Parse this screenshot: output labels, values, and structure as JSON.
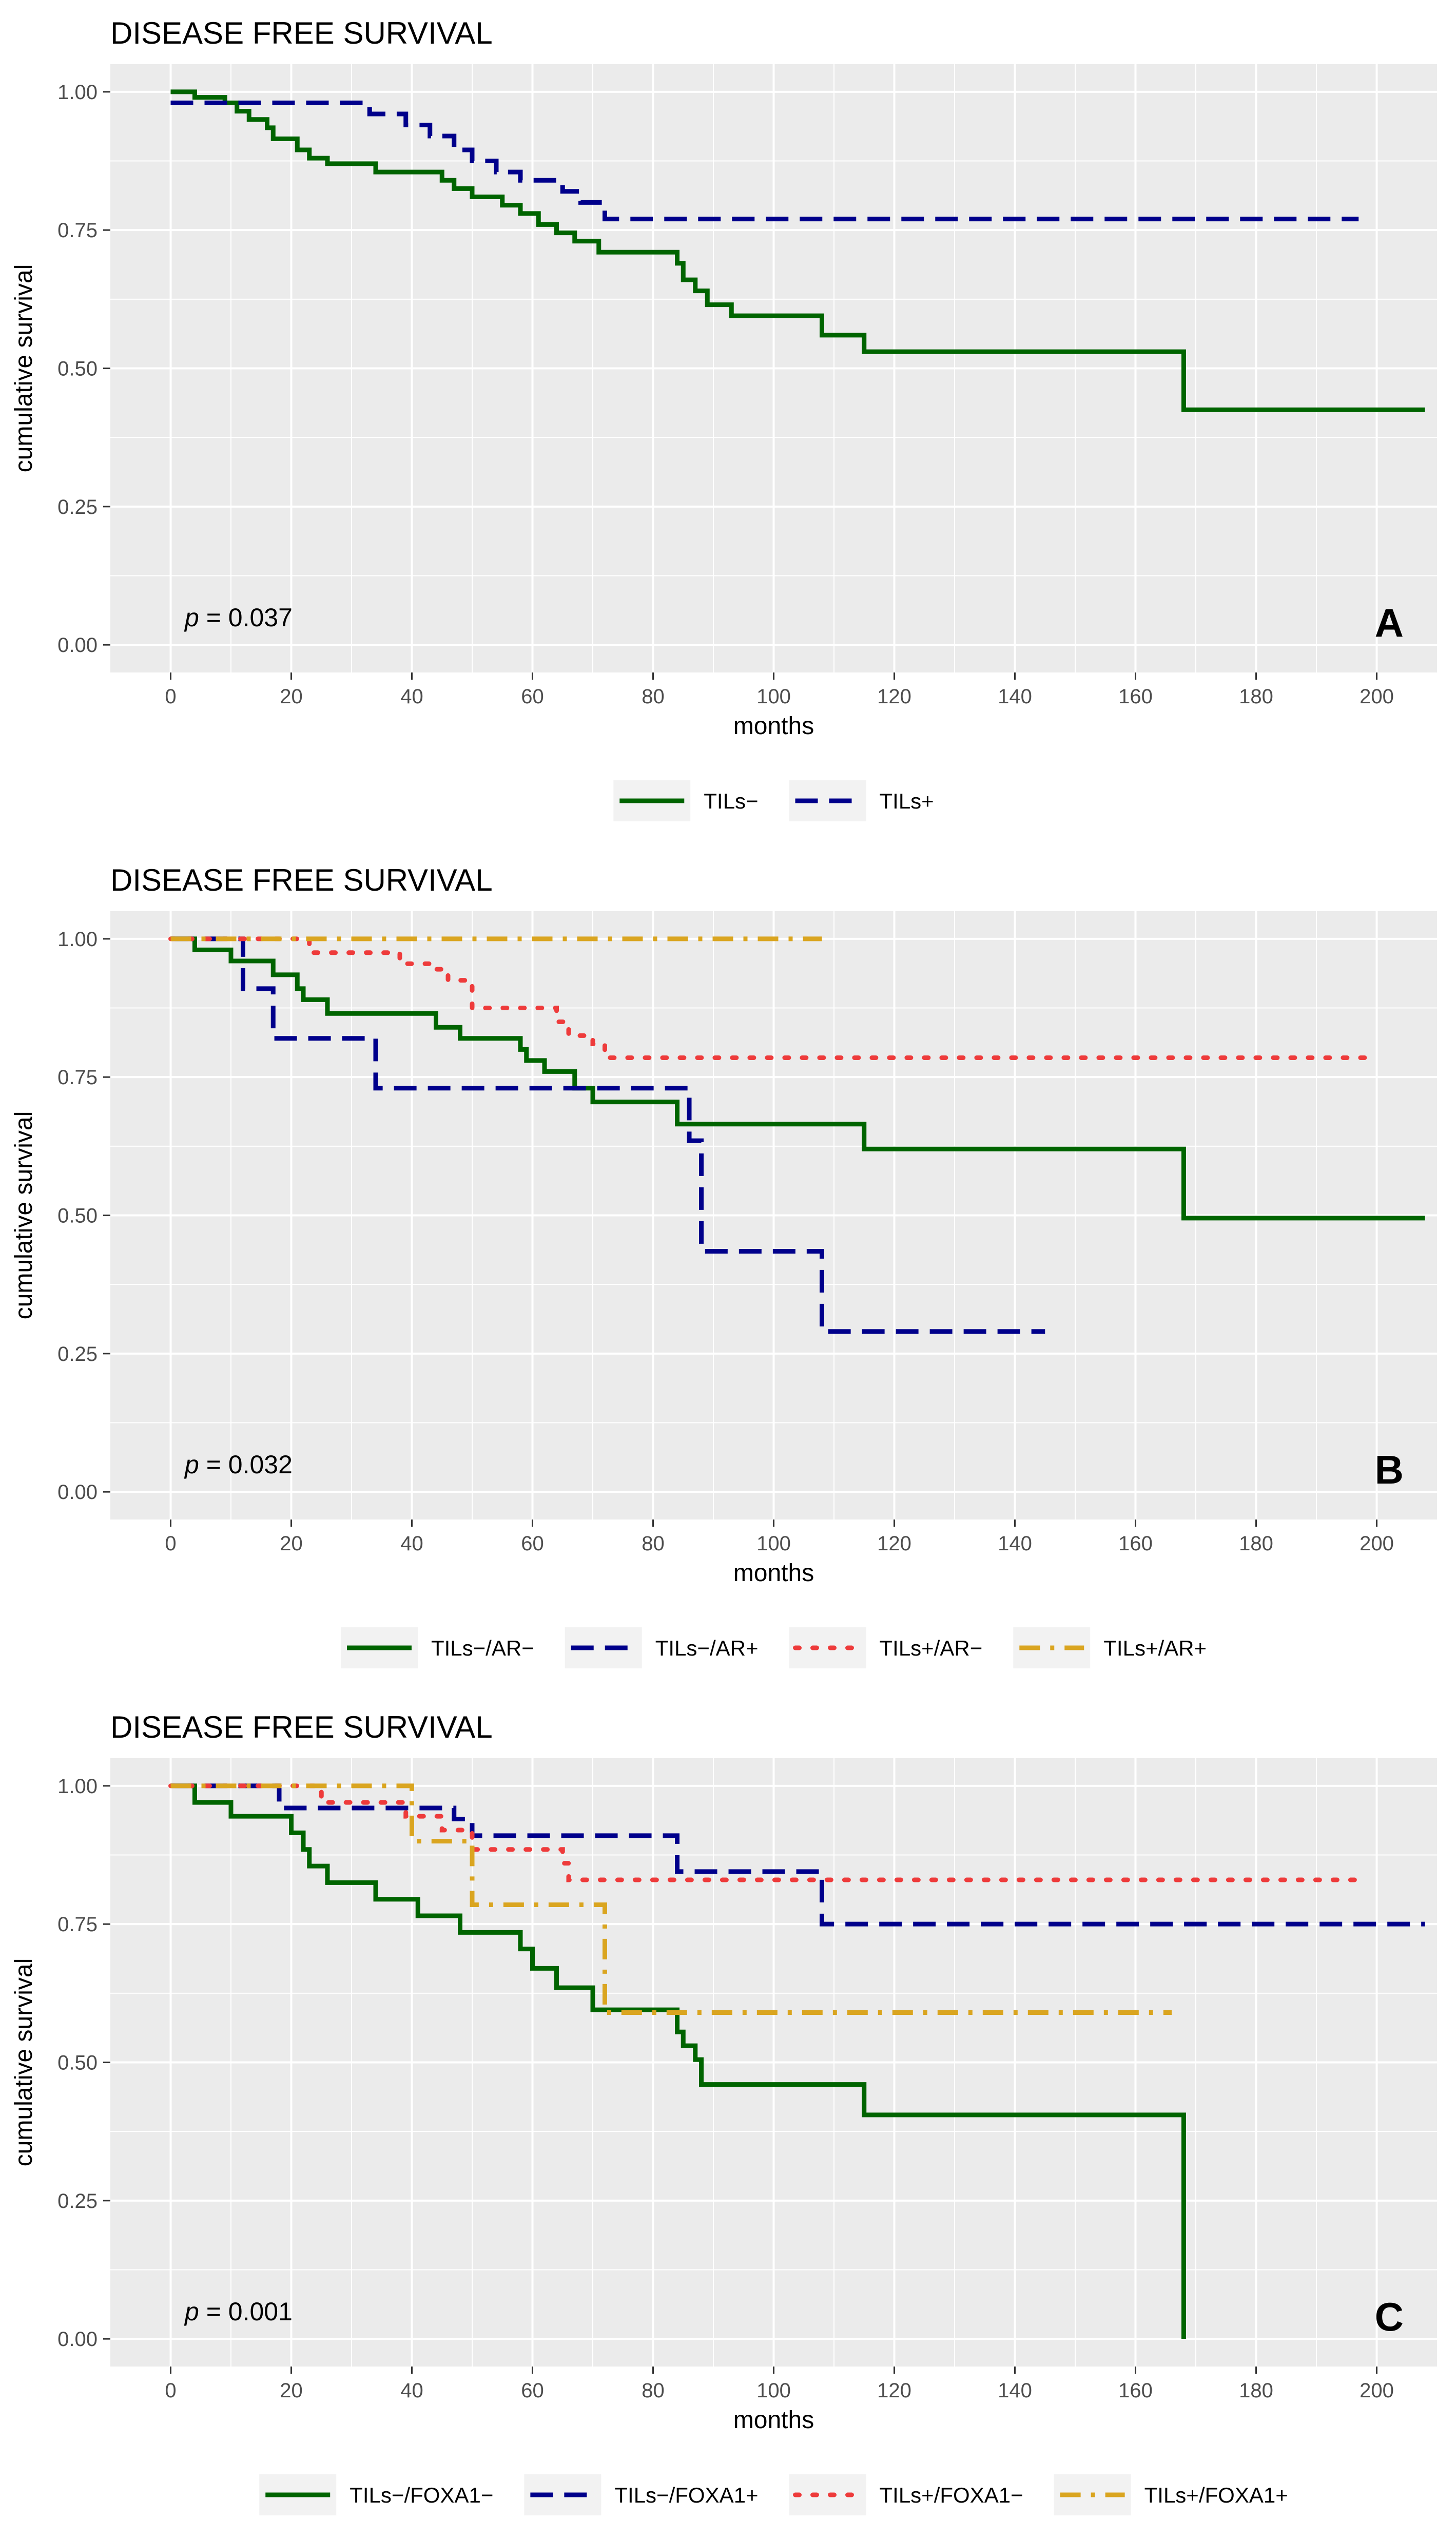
{
  "colors": {
    "panel_bg": "#EBEBEB",
    "grid": "#FFFFFF",
    "tick_text": "#4D4D4D",
    "tick_mark": "#333333",
    "dark_green": "#006400",
    "dark_blue": "#00008B",
    "red": "#EE3B3B",
    "gold": "#DAA520"
  },
  "chart_data": [
    {
      "type": "line",
      "title": "DISEASE FREE SURVIVAL",
      "panel_letter": "A",
      "p_value": {
        "label": "p",
        "text": " = 0.037"
      },
      "xlabel": "months",
      "ylabel": "cumulative survival",
      "xlim": [
        -10,
        210
      ],
      "ylim": [
        -0.05,
        1.05
      ],
      "xticks": [
        0,
        20,
        40,
        60,
        80,
        100,
        120,
        140,
        160,
        180,
        200
      ],
      "xtick_labels": [
        "0",
        "20",
        "40",
        "60",
        "80",
        "100",
        "120",
        "140",
        "160",
        "180",
        "200"
      ],
      "yticks": [
        0,
        0.25,
        0.5,
        0.75,
        1.0
      ],
      "ytick_labels": [
        "0.00",
        "0.25",
        "0.50",
        "0.75",
        "1.00"
      ],
      "legend_position": "bottom",
      "series": [
        {
          "name": "TILs−",
          "color": "#006400",
          "dash": "solid",
          "steps": [
            [
              0,
              1.0
            ],
            [
              4,
              0.99
            ],
            [
              9,
              0.98
            ],
            [
              11,
              0.965
            ],
            [
              13,
              0.95
            ],
            [
              16,
              0.935
            ],
            [
              17,
              0.915
            ],
            [
              21,
              0.895
            ],
            [
              23,
              0.88
            ],
            [
              26,
              0.87
            ],
            [
              34,
              0.855
            ],
            [
              45,
              0.84
            ],
            [
              47,
              0.825
            ],
            [
              50,
              0.81
            ],
            [
              55,
              0.795
            ],
            [
              58,
              0.78
            ],
            [
              61,
              0.76
            ],
            [
              64,
              0.745
            ],
            [
              67,
              0.73
            ],
            [
              71,
              0.71
            ],
            [
              84,
              0.69
            ],
            [
              85,
              0.66
            ],
            [
              87,
              0.64
            ],
            [
              89,
              0.615
            ],
            [
              93,
              0.595
            ],
            [
              108,
              0.56
            ],
            [
              115,
              0.53
            ],
            [
              168,
              0.425
            ],
            [
              208,
              0.425
            ]
          ]
        },
        {
          "name": "TILs+",
          "color": "#00008B",
          "dash": "dashed",
          "steps": [
            [
              0,
              0.98
            ],
            [
              33,
              0.96
            ],
            [
              39,
              0.94
            ],
            [
              43,
              0.92
            ],
            [
              47,
              0.895
            ],
            [
              50,
              0.875
            ],
            [
              54,
              0.855
            ],
            [
              58,
              0.84
            ],
            [
              65,
              0.82
            ],
            [
              68,
              0.8
            ],
            [
              72,
              0.77
            ],
            [
              197,
              0.77
            ]
          ]
        }
      ]
    },
    {
      "type": "line",
      "title": "DISEASE FREE SURVIVAL",
      "panel_letter": "B",
      "p_value": {
        "label": "p",
        "text": " = 0.032"
      },
      "xlabel": "months",
      "ylabel": "cumulative survival",
      "xlim": [
        -10,
        210
      ],
      "ylim": [
        -0.05,
        1.05
      ],
      "xticks": [
        0,
        20,
        40,
        60,
        80,
        100,
        120,
        140,
        160,
        180,
        200
      ],
      "xtick_labels": [
        "0",
        "20",
        "40",
        "60",
        "80",
        "100",
        "120",
        "140",
        "160",
        "180",
        "200"
      ],
      "yticks": [
        0,
        0.25,
        0.5,
        0.75,
        1.0
      ],
      "ytick_labels": [
        "0.00",
        "0.25",
        "0.50",
        "0.75",
        "1.00"
      ],
      "legend_position": "bottom",
      "series": [
        {
          "name": "TILs−/AR−",
          "color": "#006400",
          "dash": "solid",
          "steps": [
            [
              0,
              1.0
            ],
            [
              4,
              0.98
            ],
            [
              10,
              0.96
            ],
            [
              17,
              0.935
            ],
            [
              21,
              0.91
            ],
            [
              22,
              0.89
            ],
            [
              26,
              0.865
            ],
            [
              44,
              0.84
            ],
            [
              48,
              0.82
            ],
            [
              58,
              0.8
            ],
            [
              59,
              0.78
            ],
            [
              62,
              0.76
            ],
            [
              67,
              0.73
            ],
            [
              70,
              0.705
            ],
            [
              84,
              0.665
            ],
            [
              115,
              0.62
            ],
            [
              168,
              0.495
            ],
            [
              208,
              0.495
            ]
          ]
        },
        {
          "name": "TILs−/AR+",
          "color": "#00008B",
          "dash": "dashed",
          "steps": [
            [
              0,
              1.0
            ],
            [
              12,
              0.91
            ],
            [
              17,
              0.82
            ],
            [
              34,
              0.73
            ],
            [
              86,
              0.635
            ],
            [
              88,
              0.435
            ],
            [
              108,
              0.29
            ],
            [
              145,
              0.29
            ]
          ]
        },
        {
          "name": "TILs+/AR−",
          "color": "#EE3B3B",
          "dash": "dotted",
          "steps": [
            [
              0,
              1.0
            ],
            [
              23,
              0.975
            ],
            [
              38,
              0.955
            ],
            [
              43,
              0.945
            ],
            [
              46,
              0.925
            ],
            [
              50,
              0.875
            ],
            [
              64,
              0.85
            ],
            [
              66,
              0.825
            ],
            [
              70,
              0.81
            ],
            [
              72,
              0.785
            ],
            [
              198,
              0.785
            ]
          ]
        },
        {
          "name": "TILs+/AR+",
          "color": "#DAA520",
          "dash": "dotdash",
          "steps": [
            [
              0,
              1.0
            ],
            [
              108,
              1.0
            ]
          ]
        }
      ]
    },
    {
      "type": "line",
      "title": "DISEASE FREE SURVIVAL",
      "panel_letter": "C",
      "p_value": {
        "label": "p",
        "text": " = 0.001"
      },
      "xlabel": "months",
      "ylabel": "cumulative survival",
      "xlim": [
        -10,
        210
      ],
      "ylim": [
        -0.05,
        1.05
      ],
      "xticks": [
        0,
        20,
        40,
        60,
        80,
        100,
        120,
        140,
        160,
        180,
        200
      ],
      "xtick_labels": [
        "0",
        "20",
        "40",
        "60",
        "80",
        "100",
        "120",
        "140",
        "160",
        "180",
        "200"
      ],
      "yticks": [
        0,
        0.25,
        0.5,
        0.75,
        1.0
      ],
      "ytick_labels": [
        "0.00",
        "0.25",
        "0.50",
        "0.75",
        "1.00"
      ],
      "legend_position": "bottom",
      "series": [
        {
          "name": "TILs−/FOXA1−",
          "color": "#006400",
          "dash": "solid",
          "steps": [
            [
              0,
              1.0
            ],
            [
              4,
              0.97
            ],
            [
              10,
              0.945
            ],
            [
              20,
              0.915
            ],
            [
              22,
              0.885
            ],
            [
              23,
              0.855
            ],
            [
              26,
              0.825
            ],
            [
              34,
              0.795
            ],
            [
              41,
              0.765
            ],
            [
              48,
              0.735
            ],
            [
              58,
              0.705
            ],
            [
              60,
              0.67
            ],
            [
              64,
              0.635
            ],
            [
              70,
              0.595
            ],
            [
              84,
              0.555
            ],
            [
              85,
              0.53
            ],
            [
              87,
              0.505
            ],
            [
              88,
              0.46
            ],
            [
              115,
              0.405
            ],
            [
              168,
              0.0
            ]
          ]
        },
        {
          "name": "TILs−/FOXA1+",
          "color": "#00008B",
          "dash": "dashed",
          "steps": [
            [
              0,
              1.0
            ],
            [
              18,
              0.96
            ],
            [
              47,
              0.94
            ],
            [
              50,
              0.91
            ],
            [
              84,
              0.845
            ],
            [
              108,
              0.75
            ],
            [
              208,
              0.75
            ]
          ]
        },
        {
          "name": "TILs+/FOXA1−",
          "color": "#EE3B3B",
          "dash": "dotted",
          "steps": [
            [
              0,
              1.0
            ],
            [
              25,
              0.97
            ],
            [
              39,
              0.945
            ],
            [
              45,
              0.92
            ],
            [
              50,
              0.885
            ],
            [
              65,
              0.86
            ],
            [
              66,
              0.83
            ],
            [
              198,
              0.83
            ]
          ]
        },
        {
          "name": "TILs+/FOXA1+",
          "color": "#DAA520",
          "dash": "dotdash",
          "steps": [
            [
              0,
              1.0
            ],
            [
              40,
              0.9
            ],
            [
              50,
              0.785
            ],
            [
              72,
              0.59
            ],
            [
              166,
              0.59
            ]
          ]
        }
      ]
    }
  ]
}
